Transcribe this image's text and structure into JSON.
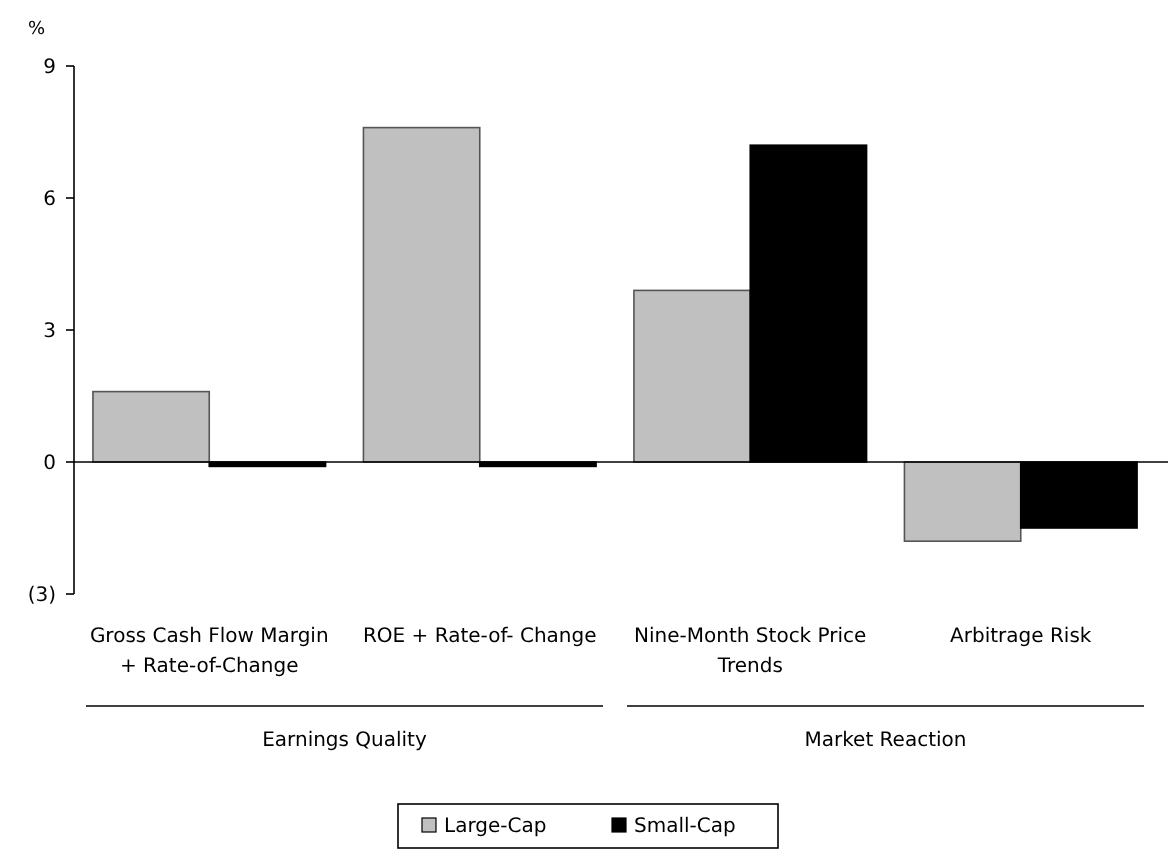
{
  "chart_data": {
    "type": "bar",
    "ylabel": "%",
    "categories": [
      "Gross Cash Flow Margin + Rate-of-Change",
      "ROE + Rate-of- Change",
      "Nine-Month Stock Price Trends",
      "Arbitrage Risk"
    ],
    "series": [
      {
        "name": "Large-Cap",
        "color": "#c0c0c0",
        "values": [
          1.6,
          7.6,
          3.9,
          -1.8
        ]
      },
      {
        "name": "Small-Cap",
        "color": "#000000",
        "values": [
          -0.1,
          -0.1,
          7.2,
          -1.5
        ]
      }
    ],
    "ylim": [
      -3,
      9
    ],
    "yticks": [
      {
        "value": -3,
        "label": "(3)"
      },
      0,
      3,
      6,
      9
    ],
    "legend": "bottom",
    "annotations": [
      "Earnings Quality",
      "Market Reaction"
    ]
  }
}
